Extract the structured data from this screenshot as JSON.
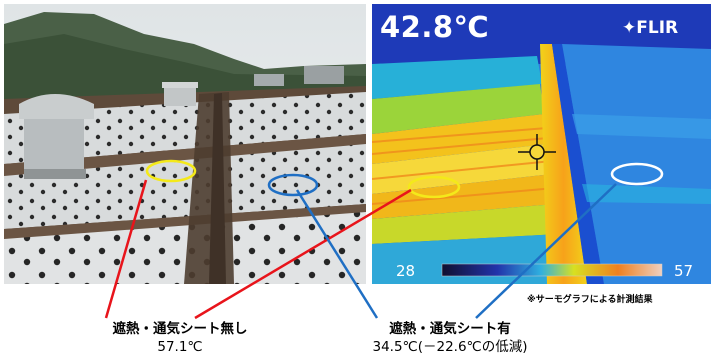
{
  "thermal": {
    "temperature": "42.8℃",
    "brand": "FLIR",
    "scale_min": "28",
    "scale_max": "57"
  },
  "note": "※サーモグラフによる計測結果",
  "labels": {
    "without_sheet": {
      "title": "遮熱・通気シート無し",
      "value": "57.1℃",
      "color": "#e8141b"
    },
    "with_sheet": {
      "title": "遮熱・通気シート有",
      "value": "34.5℃(－22.6℃の低減)",
      "color": "#1f6fc4"
    }
  }
}
